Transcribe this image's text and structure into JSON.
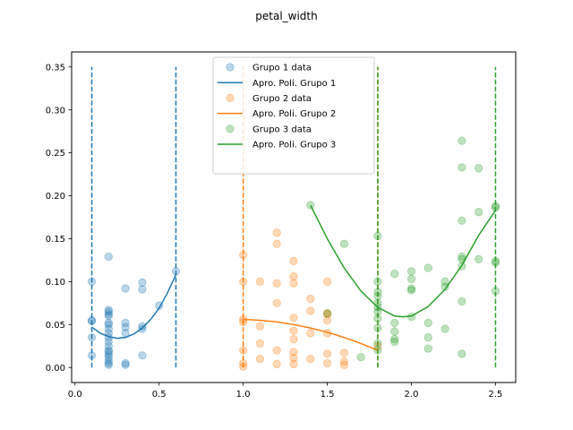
{
  "chart_data": {
    "type": "scatter",
    "title": "petal_width",
    "xlabel": "",
    "ylabel": "",
    "xlim": [
      -0.02,
      2.62
    ],
    "ylim": [
      -0.0175,
      0.3675
    ],
    "xticks": [
      0.0,
      0.5,
      1.0,
      1.5,
      2.0,
      2.5
    ],
    "xtick_labels": [
      "0.0",
      "0.5",
      "1.0",
      "1.5",
      "2.0",
      "2.5"
    ],
    "yticks": [
      0.0,
      0.05,
      0.1,
      0.15,
      0.2,
      0.25,
      0.3,
      0.35
    ],
    "ytick_labels": [
      "0.00",
      "0.05",
      "0.10",
      "0.15",
      "0.20",
      "0.25",
      "0.30",
      "0.35"
    ],
    "grid": false,
    "legend_position": "top-center",
    "colors": {
      "grupo1": "#1f77b4",
      "grupo2": "#ff7f0e",
      "grupo3": "#2ca02c"
    },
    "series": [
      {
        "name": "Grupo 1 data",
        "kind": "points",
        "color": "#1f77b4",
        "points": [
          [
            0.1,
            0.1
          ],
          [
            0.1,
            0.055
          ],
          [
            0.1,
            0.054
          ],
          [
            0.1,
            0.035
          ],
          [
            0.1,
            0.014
          ],
          [
            0.2,
            0.129
          ],
          [
            0.2,
            0.067
          ],
          [
            0.2,
            0.065
          ],
          [
            0.2,
            0.062
          ],
          [
            0.2,
            0.06
          ],
          [
            0.2,
            0.052
          ],
          [
            0.2,
            0.05
          ],
          [
            0.2,
            0.045
          ],
          [
            0.2,
            0.04
          ],
          [
            0.2,
            0.035
          ],
          [
            0.2,
            0.03
          ],
          [
            0.2,
            0.025
          ],
          [
            0.2,
            0.02
          ],
          [
            0.2,
            0.018
          ],
          [
            0.2,
            0.015
          ],
          [
            0.2,
            0.012
          ],
          [
            0.2,
            0.008
          ],
          [
            0.2,
            0.005
          ],
          [
            0.2,
            0.003
          ],
          [
            0.3,
            0.092
          ],
          [
            0.3,
            0.052
          ],
          [
            0.3,
            0.047
          ],
          [
            0.3,
            0.04
          ],
          [
            0.3,
            0.005
          ],
          [
            0.3,
            0.003
          ],
          [
            0.4,
            0.099
          ],
          [
            0.4,
            0.091
          ],
          [
            0.4,
            0.048
          ],
          [
            0.4,
            0.045
          ],
          [
            0.4,
            0.014
          ],
          [
            0.5,
            0.072
          ],
          [
            0.6,
            0.112
          ]
        ]
      },
      {
        "name": "Apro. Poli. Grupo 1",
        "kind": "curve",
        "color": "#1f77b4",
        "points": [
          [
            0.1,
            0.047
          ],
          [
            0.15,
            0.04
          ],
          [
            0.2,
            0.036
          ],
          [
            0.25,
            0.034
          ],
          [
            0.3,
            0.035
          ],
          [
            0.35,
            0.039
          ],
          [
            0.4,
            0.046
          ],
          [
            0.45,
            0.056
          ],
          [
            0.5,
            0.069
          ],
          [
            0.55,
            0.087
          ],
          [
            0.6,
            0.108
          ]
        ]
      },
      {
        "name": "Grupo 2 data",
        "kind": "points",
        "color": "#ff7f0e",
        "points": [
          [
            1.0,
            0.131
          ],
          [
            1.0,
            0.1
          ],
          [
            1.0,
            0.056
          ],
          [
            1.0,
            0.053
          ],
          [
            1.0,
            0.02
          ],
          [
            1.0,
            0.005
          ],
          [
            1.0,
            0.001
          ],
          [
            1.1,
            0.1
          ],
          [
            1.1,
            0.048
          ],
          [
            1.1,
            0.028
          ],
          [
            1.1,
            0.01
          ],
          [
            1.2,
            0.157
          ],
          [
            1.2,
            0.144
          ],
          [
            1.2,
            0.098
          ],
          [
            1.2,
            0.075
          ],
          [
            1.2,
            0.02
          ],
          [
            1.2,
            0.004
          ],
          [
            1.3,
            0.124
          ],
          [
            1.3,
            0.106
          ],
          [
            1.3,
            0.098
          ],
          [
            1.3,
            0.058
          ],
          [
            1.3,
            0.043
          ],
          [
            1.3,
            0.033
          ],
          [
            1.3,
            0.018
          ],
          [
            1.3,
            0.011
          ],
          [
            1.3,
            0.004
          ],
          [
            1.4,
            0.08
          ],
          [
            1.4,
            0.066
          ],
          [
            1.4,
            0.04
          ],
          [
            1.4,
            0.01
          ],
          [
            1.5,
            0.1
          ],
          [
            1.5,
            0.063
          ],
          [
            1.5,
            0.062
          ],
          [
            1.5,
            0.055
          ],
          [
            1.5,
            0.04
          ],
          [
            1.5,
            0.016
          ],
          [
            1.5,
            0.005
          ],
          [
            1.6,
            0.017
          ],
          [
            1.6,
            0.007
          ],
          [
            1.6,
            0.003
          ],
          [
            1.8,
            0.025
          ]
        ]
      },
      {
        "name": "Apro. Poli. Grupo 2",
        "kind": "curve",
        "color": "#ff7f0e",
        "points": [
          [
            1.0,
            0.056
          ],
          [
            1.1,
            0.055
          ],
          [
            1.2,
            0.053
          ],
          [
            1.3,
            0.05
          ],
          [
            1.4,
            0.046
          ],
          [
            1.5,
            0.041
          ],
          [
            1.6,
            0.035
          ],
          [
            1.7,
            0.028
          ],
          [
            1.8,
            0.02
          ]
        ]
      },
      {
        "name": "Grupo 3 data",
        "kind": "points",
        "color": "#2ca02c",
        "points": [
          [
            1.4,
            0.189
          ],
          [
            1.5,
            0.063
          ],
          [
            1.6,
            0.144
          ],
          [
            1.7,
            0.012
          ],
          [
            1.8,
            0.153
          ],
          [
            1.8,
            0.1
          ],
          [
            1.8,
            0.088
          ],
          [
            1.8,
            0.083
          ],
          [
            1.8,
            0.075
          ],
          [
            1.8,
            0.07
          ],
          [
            1.8,
            0.065
          ],
          [
            1.8,
            0.057
          ],
          [
            1.8,
            0.046
          ],
          [
            1.8,
            0.028
          ],
          [
            1.8,
            0.02
          ],
          [
            1.9,
            0.109
          ],
          [
            1.9,
            0.052
          ],
          [
            1.9,
            0.042
          ],
          [
            1.9,
            0.033
          ],
          [
            1.9,
            0.03
          ],
          [
            2.0,
            0.112
          ],
          [
            2.0,
            0.103
          ],
          [
            2.0,
            0.092
          ],
          [
            2.0,
            0.09
          ],
          [
            2.0,
            0.059
          ],
          [
            2.1,
            0.116
          ],
          [
            2.1,
            0.052
          ],
          [
            2.1,
            0.035
          ],
          [
            2.1,
            0.022
          ],
          [
            2.2,
            0.1
          ],
          [
            2.2,
            0.094
          ],
          [
            2.2,
            0.045
          ],
          [
            2.3,
            0.264
          ],
          [
            2.3,
            0.233
          ],
          [
            2.3,
            0.171
          ],
          [
            2.3,
            0.129
          ],
          [
            2.3,
            0.126
          ],
          [
            2.3,
            0.118
          ],
          [
            2.3,
            0.077
          ],
          [
            2.3,
            0.016
          ],
          [
            2.4,
            0.232
          ],
          [
            2.4,
            0.181
          ],
          [
            2.4,
            0.126
          ],
          [
            2.5,
            0.188
          ],
          [
            2.5,
            0.186
          ],
          [
            2.5,
            0.124
          ],
          [
            2.5,
            0.122
          ],
          [
            2.5,
            0.089
          ]
        ]
      },
      {
        "name": "Apro. Poli. Grupo 3",
        "kind": "curve",
        "color": "#2ca02c",
        "points": [
          [
            1.4,
            0.189
          ],
          [
            1.5,
            0.15
          ],
          [
            1.6,
            0.116
          ],
          [
            1.7,
            0.089
          ],
          [
            1.8,
            0.07
          ],
          [
            1.9,
            0.06
          ],
          [
            1.95,
            0.059
          ],
          [
            2.0,
            0.06
          ],
          [
            2.1,
            0.071
          ],
          [
            2.2,
            0.091
          ],
          [
            2.3,
            0.119
          ],
          [
            2.4,
            0.154
          ],
          [
            2.5,
            0.183
          ]
        ]
      },
      {
        "kind": "vline",
        "color": "#1f77b4",
        "x": 0.1,
        "y": [
          0,
          0.35
        ]
      },
      {
        "kind": "vline",
        "color": "#1f77b4",
        "x": 0.6,
        "y": [
          0,
          0.35
        ]
      },
      {
        "kind": "vline",
        "color": "#ff7f0e",
        "x": 1.0,
        "y": [
          0,
          0.35
        ]
      },
      {
        "kind": "vline",
        "color": "#ff7f0e",
        "x": 1.8,
        "y": [
          0,
          0.35
        ]
      },
      {
        "kind": "vline",
        "color": "#2ca02c",
        "x": 1.8,
        "y": [
          0,
          0.35
        ]
      },
      {
        "kind": "vline",
        "color": "#2ca02c",
        "x": 2.5,
        "y": [
          0,
          0.35
        ]
      }
    ],
    "legend": [
      {
        "label": "Grupo 1 data",
        "kind": "marker",
        "color": "#1f77b4"
      },
      {
        "label": "Apro. Poli. Grupo 1",
        "kind": "line",
        "color": "#1f77b4"
      },
      {
        "label": "Grupo 2 data",
        "kind": "marker",
        "color": "#ff7f0e"
      },
      {
        "label": "Apro. Poli. Grupo 2",
        "kind": "line",
        "color": "#ff7f0e"
      },
      {
        "label": "Grupo 3 data",
        "kind": "marker",
        "color": "#2ca02c"
      },
      {
        "label": "Apro. Poli. Grupo 3",
        "kind": "line",
        "color": "#2ca02c"
      }
    ]
  }
}
